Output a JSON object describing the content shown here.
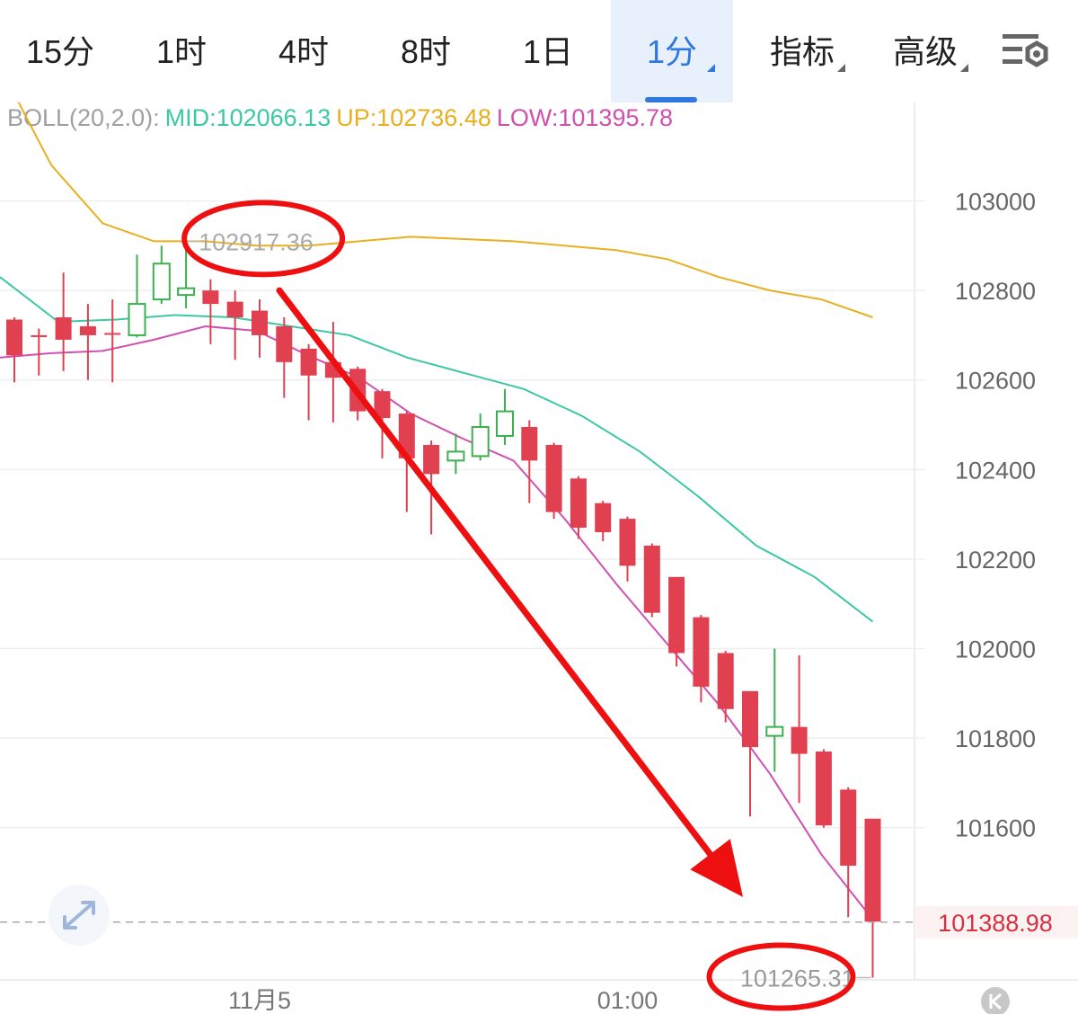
{
  "tabs": [
    {
      "label": "15分"
    },
    {
      "label": "1时"
    },
    {
      "label": "4时"
    },
    {
      "label": "8时"
    },
    {
      "label": "1日"
    },
    {
      "label": "1分",
      "active": true
    },
    {
      "label": "指标"
    },
    {
      "label": "高级"
    }
  ],
  "settings_icon": "settings-icon",
  "indicator": {
    "name": "BOLL(20,2.0):",
    "mid": "MID:102066.13",
    "up": "UP:102736.48",
    "low": "LOW:101395.78",
    "colors": {
      "name": "#a0a0a0",
      "mid": "#3cc8a0",
      "up": "#e8b020",
      "low": "#d050b0"
    }
  },
  "chart_data": {
    "type": "candlestick",
    "y_ticks": [
      103000,
      102800,
      102600,
      102400,
      102200,
      102000,
      101800,
      101600
    ],
    "ylim": [
      101260,
      103220
    ],
    "x_tick_labels": [
      "11月5",
      "01:00"
    ],
    "x_tick_index": [
      10,
      25
    ],
    "candles": [
      {
        "o": 102735,
        "c": 102655,
        "h": 102740,
        "l": 102595
      },
      {
        "o": 102700,
        "c": 102700,
        "h": 102715,
        "l": 102610
      },
      {
        "o": 102740,
        "c": 102690,
        "h": 102840,
        "l": 102620
      },
      {
        "o": 102720,
        "c": 102700,
        "h": 102770,
        "l": 102600
      },
      {
        "o": 102705,
        "c": 102705,
        "h": 102780,
        "l": 102595
      },
      {
        "o": 102700,
        "c": 102770,
        "h": 102880,
        "l": 102695
      },
      {
        "o": 102780,
        "c": 102860,
        "h": 102900,
        "l": 102770
      },
      {
        "o": 102790,
        "c": 102805,
        "h": 102910,
        "l": 102760
      },
      {
        "o": 102800,
        "c": 102770,
        "h": 102825,
        "l": 102680
      },
      {
        "o": 102775,
        "c": 102740,
        "h": 102800,
        "l": 102645
      },
      {
        "o": 102755,
        "c": 102700,
        "h": 102780,
        "l": 102650
      },
      {
        "o": 102720,
        "c": 102640,
        "h": 102740,
        "l": 102560
      },
      {
        "o": 102670,
        "c": 102610,
        "h": 102680,
        "l": 102510
      },
      {
        "o": 102640,
        "c": 102605,
        "h": 102730,
        "l": 102505
      },
      {
        "o": 102625,
        "c": 102530,
        "h": 102630,
        "l": 102510
      },
      {
        "o": 102575,
        "c": 102515,
        "h": 102580,
        "l": 102425
      },
      {
        "o": 102525,
        "c": 102425,
        "h": 102530,
        "l": 102305
      },
      {
        "o": 102455,
        "c": 102390,
        "h": 102465,
        "l": 102255
      },
      {
        "o": 102420,
        "c": 102440,
        "h": 102480,
        "l": 102390
      },
      {
        "o": 102430,
        "c": 102495,
        "h": 102525,
        "l": 102420
      },
      {
        "o": 102475,
        "c": 102530,
        "h": 102580,
        "l": 102455
      },
      {
        "o": 102495,
        "c": 102420,
        "h": 102510,
        "l": 102325
      },
      {
        "o": 102455,
        "c": 102305,
        "h": 102460,
        "l": 102290
      },
      {
        "o": 102380,
        "c": 102270,
        "h": 102385,
        "l": 102245
      },
      {
        "o": 102325,
        "c": 102260,
        "h": 102330,
        "l": 102240
      },
      {
        "o": 102290,
        "c": 102185,
        "h": 102295,
        "l": 102150
      },
      {
        "o": 102230,
        "c": 102080,
        "h": 102235,
        "l": 102070
      },
      {
        "o": 102160,
        "c": 101990,
        "h": 102160,
        "l": 101960
      },
      {
        "o": 102070,
        "c": 101915,
        "h": 102075,
        "l": 101880
      },
      {
        "o": 101990,
        "c": 101865,
        "h": 101995,
        "l": 101835
      },
      {
        "o": 101905,
        "c": 101780,
        "h": 101905,
        "l": 101625
      },
      {
        "o": 101805,
        "c": 101825,
        "h": 102000,
        "l": 101725
      },
      {
        "o": 101825,
        "c": 101765,
        "h": 101985,
        "l": 101655
      },
      {
        "o": 101770,
        "c": 101605,
        "h": 101775,
        "l": 101600
      },
      {
        "o": 101685,
        "c": 101515,
        "h": 101690,
        "l": 101400
      },
      {
        "o": 101620,
        "c": 101390,
        "h": 101620,
        "l": 101265
      }
    ],
    "boll_up": [
      103300,
      103080,
      102950,
      102910,
      102910,
      102900,
      102900,
      102910,
      102920,
      102915,
      102910,
      102900,
      102890,
      102870,
      102830,
      102800,
      102780,
      102740
    ],
    "boll_mid": [
      102830,
      102730,
      102735,
      102745,
      102740,
      102720,
      102700,
      102650,
      102615,
      102580,
      102520,
      102440,
      102340,
      102230,
      102160,
      102060
    ],
    "boll_low": [
      102650,
      102660,
      102665,
      102690,
      102720,
      102710,
      102655,
      102605,
      102525,
      102470,
      102420,
      102290,
      102145,
      102010,
      101875,
      101720,
      101540,
      101395
    ],
    "colors": {
      "up": "#e8b020",
      "mid": "#3cc8a0",
      "low": "#d050b0",
      "bear": "#e04050",
      "bull": "#3cb050",
      "grid": "#efefef",
      "arrow": "#ee1010"
    },
    "last_price": "101388.98",
    "last_price_value": 101388.98,
    "annotations": {
      "high": "102917.36",
      "low": "101265.31"
    }
  }
}
